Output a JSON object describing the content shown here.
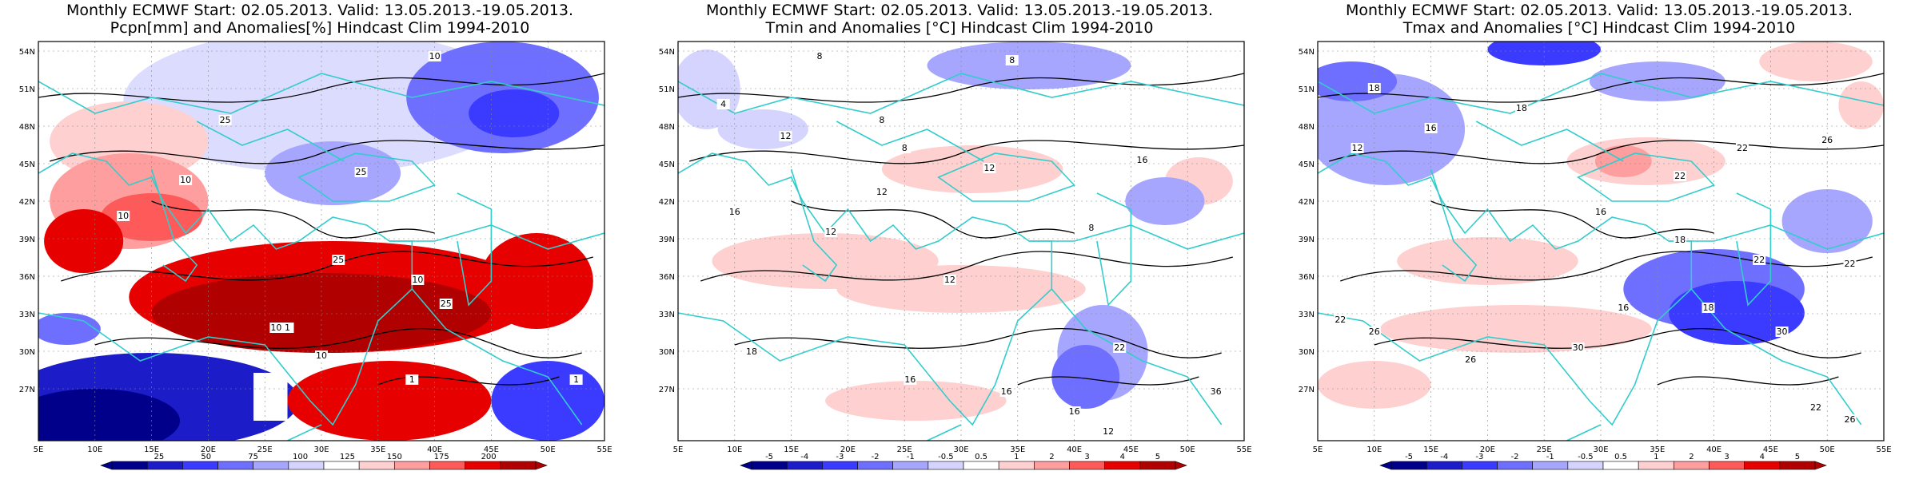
{
  "panels": [
    {
      "title_line1": "Monthly ECMWF Start: 02.05.2013. Valid: 13.05.2013.-19.05.2013.",
      "title_line2": "Pcpn[mm] and Anomalies[%] Hindcast Clim 1994-2010",
      "legend_labels": [
        "25",
        "50",
        "75",
        "100",
        "125",
        "150",
        "175",
        "200"
      ],
      "contour_labels": [
        "10",
        "25",
        "10",
        "25",
        "10",
        "25",
        "10",
        "10",
        "25",
        "1",
        "10",
        "1",
        "1"
      ],
      "colorbar_colors": [
        "#00008b",
        "#1c1cc8",
        "#3b3bff",
        "#6f6fff",
        "#a6a6ff",
        "#d4d4ff",
        "#ffffff",
        "#ffd0d0",
        "#ff9e9e",
        "#ff5a5a",
        "#e60000",
        "#b00000"
      ]
    },
    {
      "title_line1": "Monthly ECMWF Start: 02.05.2013. Valid: 13.05.2013.-19.05.2013.",
      "title_line2": "Tmin and Anomalies [°C] Hindcast Clim 1994-2010",
      "legend_labels": [
        "-5",
        "-4",
        "-3",
        "-2",
        "-1",
        "-0.5",
        "0.5",
        "1",
        "2",
        "3",
        "4",
        "5"
      ],
      "contour_labels": [
        "8",
        "8",
        "8",
        "4",
        "12",
        "8",
        "12",
        "16",
        "12",
        "12",
        "16",
        "8",
        "12",
        "22",
        "16",
        "16",
        "18",
        "12",
        "16",
        "36"
      ],
      "colorbar_colors": [
        "#00008b",
        "#1c1cc8",
        "#3b3bff",
        "#6f6fff",
        "#a6a6ff",
        "#d4d4ff",
        "#ffffff",
        "#ffd0d0",
        "#ff9e9e",
        "#ff5a5a",
        "#e60000",
        "#b00000"
      ]
    },
    {
      "title_line1": "Monthly ECMWF Start: 02.05.2013. Valid: 13.05.2013.-19.05.2013.",
      "title_line2": "Tmax and Anomalies [°C] Hindcast Clim 1994-2010",
      "legend_labels": [
        "-5",
        "-4",
        "-3",
        "-2",
        "-1",
        "-0.5",
        "0.5",
        "1",
        "2",
        "3",
        "4",
        "5"
      ],
      "contour_labels": [
        "18",
        "16",
        "12",
        "18",
        "22",
        "22",
        "26",
        "16",
        "18",
        "22",
        "18",
        "16",
        "22",
        "26",
        "30",
        "22",
        "26",
        "30",
        "22",
        "26"
      ],
      "colorbar_colors": [
        "#00008b",
        "#1c1cc8",
        "#3b3bff",
        "#6f6fff",
        "#a6a6ff",
        "#d4d4ff",
        "#ffffff",
        "#ffd0d0",
        "#ff9e9e",
        "#ff5a5a",
        "#e60000",
        "#b00000"
      ]
    }
  ],
  "lat_labels": [
    "54N",
    "51N",
    "48N",
    "45N",
    "42N",
    "39N",
    "36N",
    "33N",
    "30N",
    "27N"
  ],
  "lon_labels": [
    "5E",
    "10E",
    "15E",
    "20E",
    "25E",
    "30E",
    "35E",
    "40E",
    "45E",
    "50E",
    "55E"
  ],
  "colors": {
    "coast": "#33cccc",
    "contour": "#000000",
    "grid": "#888888"
  }
}
